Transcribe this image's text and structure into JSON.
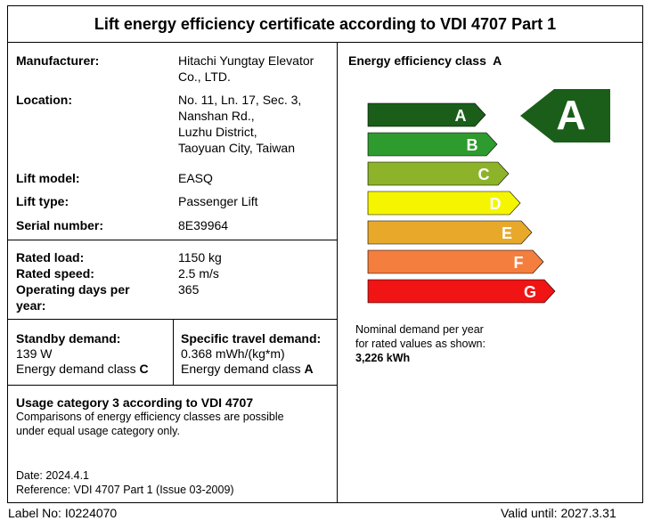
{
  "title": "Lift energy efficiency certificate according to VDI 4707 Part 1",
  "info": {
    "manufacturer_label": "Manufacturer:",
    "manufacturer_line1": "Hitachi Yungtay Elevator",
    "manufacturer_line2": "Co., LTD.",
    "location_label": "Location:",
    "location_lines": [
      "No. 11, Ln. 17, Sec. 3,",
      "Nanshan Rd.,",
      "Luzhu District,",
      "Taoyuan City, Taiwan"
    ],
    "model_label": "Lift model:",
    "model_value": "EASQ",
    "type_label": "Lift type:",
    "type_value": "Passenger Lift",
    "serial_label": "Serial number:",
    "serial_value": "8E39964"
  },
  "rated": {
    "load_label": "Rated load:",
    "load_value": "1150 kg",
    "speed_label": "Rated speed:",
    "speed_value": "2.5 m/s",
    "days_label_line1": "Operating days per",
    "days_label_line2": "year:",
    "days_value": "365"
  },
  "standby": {
    "label": "Standby demand:",
    "value": "139 W",
    "class_text": "Energy demand class",
    "class_value": "C"
  },
  "travel": {
    "label": "Specific travel demand:",
    "value": "0.368 mWh/(kg*m)",
    "class_text": "Energy demand class",
    "class_value": "A"
  },
  "usage": {
    "heading": "Usage category 3 according to VDI 4707",
    "note_line1": "Comparisons of energy efficiency classes are possible",
    "note_line2": "under equal usage category only.",
    "date": "Date: 2024.4.1",
    "reference": "Reference: VDI 4707 Part 1 (Issue 03-2009)"
  },
  "efficiency": {
    "heading": "Energy efficiency class",
    "class_value": "A",
    "badge": "A",
    "scale": [
      {
        "letter": "A",
        "color": "#1a5e1a"
      },
      {
        "letter": "B",
        "color": "#2e9b2e"
      },
      {
        "letter": "C",
        "color": "#8db32a"
      },
      {
        "letter": "D",
        "color": "#f5f500"
      },
      {
        "letter": "E",
        "color": "#e8a92a"
      },
      {
        "letter": "F",
        "color": "#f47e3e"
      },
      {
        "letter": "G",
        "color": "#f01414"
      }
    ],
    "badge_color": "#1a5e1a",
    "nominal_line1": "Nominal demand per year",
    "nominal_line2": "for rated values as shown:",
    "nominal_value": "3,226 kWh"
  },
  "footer": {
    "label_no": "Label No: I0224070",
    "valid_until": "Valid until: 2027.3.31"
  }
}
